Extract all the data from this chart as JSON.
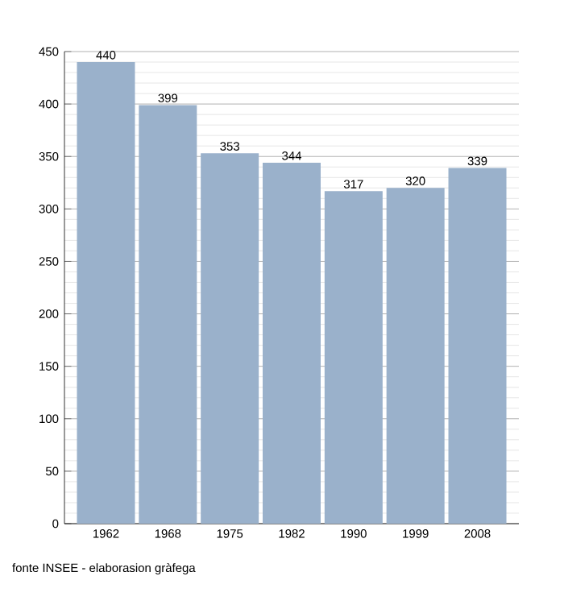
{
  "chart_data": {
    "type": "bar",
    "categories": [
      "1962",
      "1968",
      "1975",
      "1982",
      "1990",
      "1999",
      "2008"
    ],
    "values": [
      440,
      399,
      353,
      344,
      317,
      320,
      339
    ],
    "color": "#9ab1cb",
    "ylim": [
      0,
      450
    ],
    "yticks": [
      0,
      50,
      100,
      150,
      200,
      250,
      300,
      350,
      400,
      450
    ],
    "grid": "y",
    "data_labels": true,
    "annotations": [
      "fonte INSEE - elaborasion gràfega"
    ]
  }
}
